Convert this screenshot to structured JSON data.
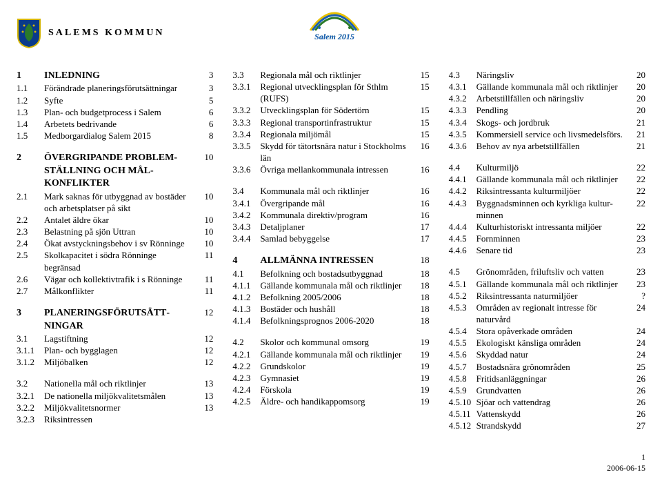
{
  "header": {
    "kommun": "SALEMS KOMMUN",
    "logo_text": "Salem 2015"
  },
  "crest": {
    "shield_fill": "#0a3a8a",
    "shield_stroke": "#d4b400",
    "leaf_fill": "#2a7a2a",
    "accent": "#d4b400"
  },
  "logo_colors": {
    "blue": "#1a5fb4",
    "green": "#2a7a2a",
    "yellow": "#e8c100"
  },
  "columns": [
    [
      [
        {
          "n": "1",
          "t": "INLEDNING",
          "p": "3",
          "h": true
        },
        {
          "n": "1.1",
          "t": "Förändrade planeringsförutsättningar",
          "p": "3"
        },
        {
          "n": "1.2",
          "t": "Syfte",
          "p": "5"
        },
        {
          "n": "1.3",
          "t": "Plan- och budgetprocess i Salem",
          "p": "6"
        },
        {
          "n": "1.4",
          "t": "Arbetets bedrivande",
          "p": "6"
        },
        {
          "n": "1.5",
          "t": "Medborgardialog Salem 2015",
          "p": "8"
        }
      ],
      [
        {
          "n": "2",
          "t": "ÖVERGRIPANDE PROBLEM­STÄLLNING OCH MÅL­KONFLIKTER",
          "p": "10",
          "h": true
        },
        {
          "n": "2.1",
          "t": "Mark saknas för utbyggnad av bostäder och arbetsplatser på sikt",
          "p": "10"
        },
        {
          "n": "2.2",
          "t": "Antalet äldre ökar",
          "p": "10"
        },
        {
          "n": "2.3",
          "t": "Belastning på sjön Uttran",
          "p": "10"
        },
        {
          "n": "2.4",
          "t": "Ökat avstyckningsbehov i sv Rönninge",
          "p": "10"
        },
        {
          "n": "2.5",
          "t": "Skolkapacitet i södra Rönninge begränsad",
          "p": "11"
        },
        {
          "n": "2.6",
          "t": "Vägar och kollektivtrafik i s Rönninge",
          "p": "11"
        },
        {
          "n": "2.7",
          "t": "Målkonflikter",
          "p": "11"
        }
      ],
      [
        {
          "n": "3",
          "t": "PLANERINGSFÖRUTSÄTT­NINGAR",
          "p": "12",
          "h": true
        },
        {
          "n": "3.1",
          "t": "Lagstiftning",
          "p": "12"
        },
        {
          "n": "3.1.1",
          "t": "Plan- och bygglagen",
          "p": "12"
        },
        {
          "n": "3.1.2",
          "t": "Miljöbalken",
          "p": "12"
        }
      ],
      [
        {
          "n": "3.2",
          "t": "Nationella mål och riktlinjer",
          "p": "13"
        },
        {
          "n": "3.2.1",
          "t": "De nationella miljökvalitetsmålen",
          "p": "13"
        },
        {
          "n": "3.2.2",
          "t": "Miljökvalitetsnormer",
          "p": "13"
        },
        {
          "n": "3.2.3",
          "t": "Riksintressen",
          "p": ""
        }
      ]
    ],
    [
      [
        {
          "n": "3.3",
          "t": "Regionala mål och riktlinjer",
          "p": "15"
        },
        {
          "n": "3.3.1",
          "t": "Regional utvecklingsplan för Sthlm (RUFS)",
          "p": "15"
        },
        {
          "n": "3.3.2",
          "t": "Utvecklingsplan för Södertörn",
          "p": "15"
        },
        {
          "n": "3.3.3",
          "t": "Regional transportinfrastruktur",
          "p": "15"
        },
        {
          "n": "3.3.4",
          "t": "Regionala miljömål",
          "p": "15"
        },
        {
          "n": "3.3.5",
          "t": "Skydd för tätortsnära natur i Stockholms län",
          "p": "16"
        },
        {
          "n": "3.3.6",
          "t": "Övriga mellankommunala intressen",
          "p": "16"
        }
      ],
      [
        {
          "n": "3.4",
          "t": "Kommunala mål och riktlinjer",
          "p": "16"
        },
        {
          "n": "3.4.1",
          "t": "Övergripande mål",
          "p": "16"
        },
        {
          "n": "3.4.2",
          "t": "Kommunala direktiv/program",
          "p": "16"
        },
        {
          "n": "3.4.3",
          "t": "Detaljplaner",
          "p": "17"
        },
        {
          "n": "3.4.4",
          "t": "Samlad bebyggelse",
          "p": "17"
        }
      ],
      [
        {
          "n": "4",
          "t": "ALLMÄNNA INTRESSEN",
          "p": "18",
          "h": true
        },
        {
          "n": "4.1",
          "t": "Befolkning och bostadsutbyggnad",
          "p": "18"
        },
        {
          "n": "4.1.1",
          "t": "Gällande kommunala mål och riktlinjer",
          "p": "18"
        },
        {
          "n": "4.1.2",
          "t": "Befolkning 2005/2006",
          "p": "18"
        },
        {
          "n": "4.1.3",
          "t": "Bostäder och hushåll",
          "p": "18"
        },
        {
          "n": "4.1.4",
          "t": "Befolkningsprognos 2006-2020",
          "p": "18"
        }
      ],
      [
        {
          "n": "4.2",
          "t": "Skolor och kommunal omsorg",
          "p": "19"
        },
        {
          "n": "4.2.1",
          "t": "Gällande kommunala mål och riktlinjer",
          "p": "19"
        },
        {
          "n": "4.2.2",
          "t": "Grundskolor",
          "p": "19"
        },
        {
          "n": "4.2.3",
          "t": "Gymnasiet",
          "p": "19"
        },
        {
          "n": "4.2.4",
          "t": "Förskola",
          "p": "19"
        },
        {
          "n": "4.2.5",
          "t": "Äldre- och handikappomsorg",
          "p": "19"
        }
      ]
    ],
    [
      [
        {
          "n": "4.3",
          "t": "Näringsliv",
          "p": "20"
        },
        {
          "n": "4.3.1",
          "t": "Gällande kommunala mål och riktlinjer",
          "p": "20"
        },
        {
          "n": "4.3.2",
          "t": "Arbetstillfällen och näringsliv",
          "p": "20"
        },
        {
          "n": "4.3.3",
          "t": "Pendling",
          "p": "20"
        },
        {
          "n": "4.3.4",
          "t": "Skogs- och jordbruk",
          "p": "21"
        },
        {
          "n": "4.3.5",
          "t": "Kommersiell service och livsmedelsförs.",
          "p": "21"
        },
        {
          "n": "4.3.6",
          "t": "Behov av nya arbetstillfällen",
          "p": "21"
        }
      ],
      [
        {
          "n": "4.4",
          "t": "Kulturmiljö",
          "p": "22"
        },
        {
          "n": "4.4.1",
          "t": "Gällande kommunala mål och riktlinjer",
          "p": "22"
        },
        {
          "n": "4.4.2",
          "t": "Riksintressanta kulturmiljöer",
          "p": "22"
        },
        {
          "n": "4.4.3",
          "t": "Byggnadsminnen och kyrkliga kultur­minnen",
          "p": "22"
        },
        {
          "n": "4.4.4",
          "t": "Kulturhistoriskt intressanta miljöer",
          "p": "22"
        },
        {
          "n": "4.4.5",
          "t": "Fornminnen",
          "p": "23"
        },
        {
          "n": "4.4.6",
          "t": "Senare tid",
          "p": "23"
        }
      ],
      [
        {
          "n": "4.5",
          "t": "Grönområden, friluftsliv och vatten",
          "p": "23"
        },
        {
          "n": "4.5.1",
          "t": "Gällande kommunala mål och riktlinjer",
          "p": "23"
        },
        {
          "n": "4.5.2",
          "t": "Riksintressanta naturmiljöer",
          "p": "?"
        },
        {
          "n": "4.5.3",
          "t": "Områden av regionalt intresse för naturvård",
          "p": "24"
        },
        {
          "n": "4.5.4",
          "t": "Stora opåverkade områden",
          "p": "24"
        },
        {
          "n": "4.5.5",
          "t": "Ekologiskt känsliga områden",
          "p": "24"
        },
        {
          "n": "4.5.6",
          "t": "Skyddad natur",
          "p": "24"
        },
        {
          "n": "4.5.7",
          "t": "Bostadsnära grönområden",
          "p": "25"
        },
        {
          "n": "4.5.8",
          "t": "Fritidsanläggningar",
          "p": "26"
        },
        {
          "n": "4.5.9",
          "t": "Grundvatten",
          "p": "26"
        },
        {
          "n": "4.5.10",
          "t": "Sjöar och vattendrag",
          "p": "26"
        },
        {
          "n": "4.5.11",
          "t": "Vattenskydd",
          "p": "26"
        },
        {
          "n": "4.5.12",
          "t": "Strandskydd",
          "p": "27"
        }
      ]
    ]
  ],
  "footer": {
    "date": "2006-06-15",
    "page": "1"
  }
}
